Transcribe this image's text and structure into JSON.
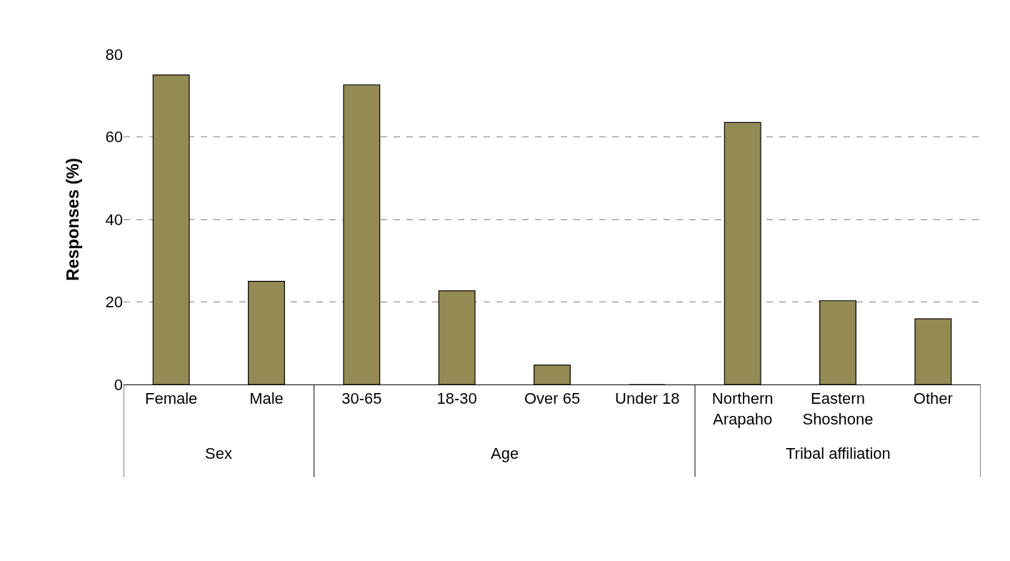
{
  "chart_data": {
    "type": "bar",
    "ylabel": "Responses (%)",
    "categories": [
      "Female",
      "Male",
      "30-65",
      "18-30",
      "Over 65",
      "Under 18",
      "Northern\nArapaho",
      "Eastern\nShoshone",
      "Other"
    ],
    "values": [
      75,
      25,
      72.6,
      22.7,
      4.7,
      0,
      63.5,
      20.3,
      15.9
    ],
    "color": "#948a54",
    "ylim": [
      0,
      80
    ],
    "yticks": [
      0,
      20,
      40,
      60,
      80
    ],
    "grid": "y",
    "legend": false,
    "annotations": [
      "Sex",
      "Age",
      "Tribal affiliation"
    ]
  }
}
